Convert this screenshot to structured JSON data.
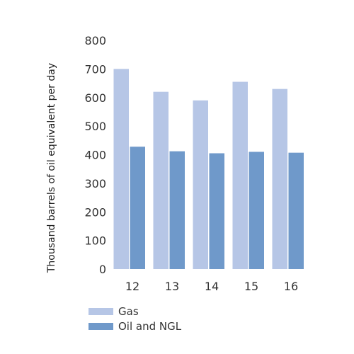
{
  "chart_data": {
    "type": "bar",
    "categories": [
      "12",
      "13",
      "14",
      "15",
      "16"
    ],
    "series": [
      {
        "name": "Gas",
        "values": [
          700,
          620,
          590,
          655,
          630
        ],
        "color": "#b6c6e6"
      },
      {
        "name": "Oil and NGL",
        "values": [
          428,
          412,
          405,
          410,
          407
        ],
        "color": "#6f99ca"
      }
    ],
    "xlabel": "",
    "ylabel": "Thousand barrels of oil equivalent per day",
    "ylim": [
      0,
      800
    ],
    "yticks": [
      0,
      100,
      200,
      300,
      400,
      500,
      600,
      700,
      800
    ],
    "grid": false,
    "legend_position": "bottom-left"
  }
}
